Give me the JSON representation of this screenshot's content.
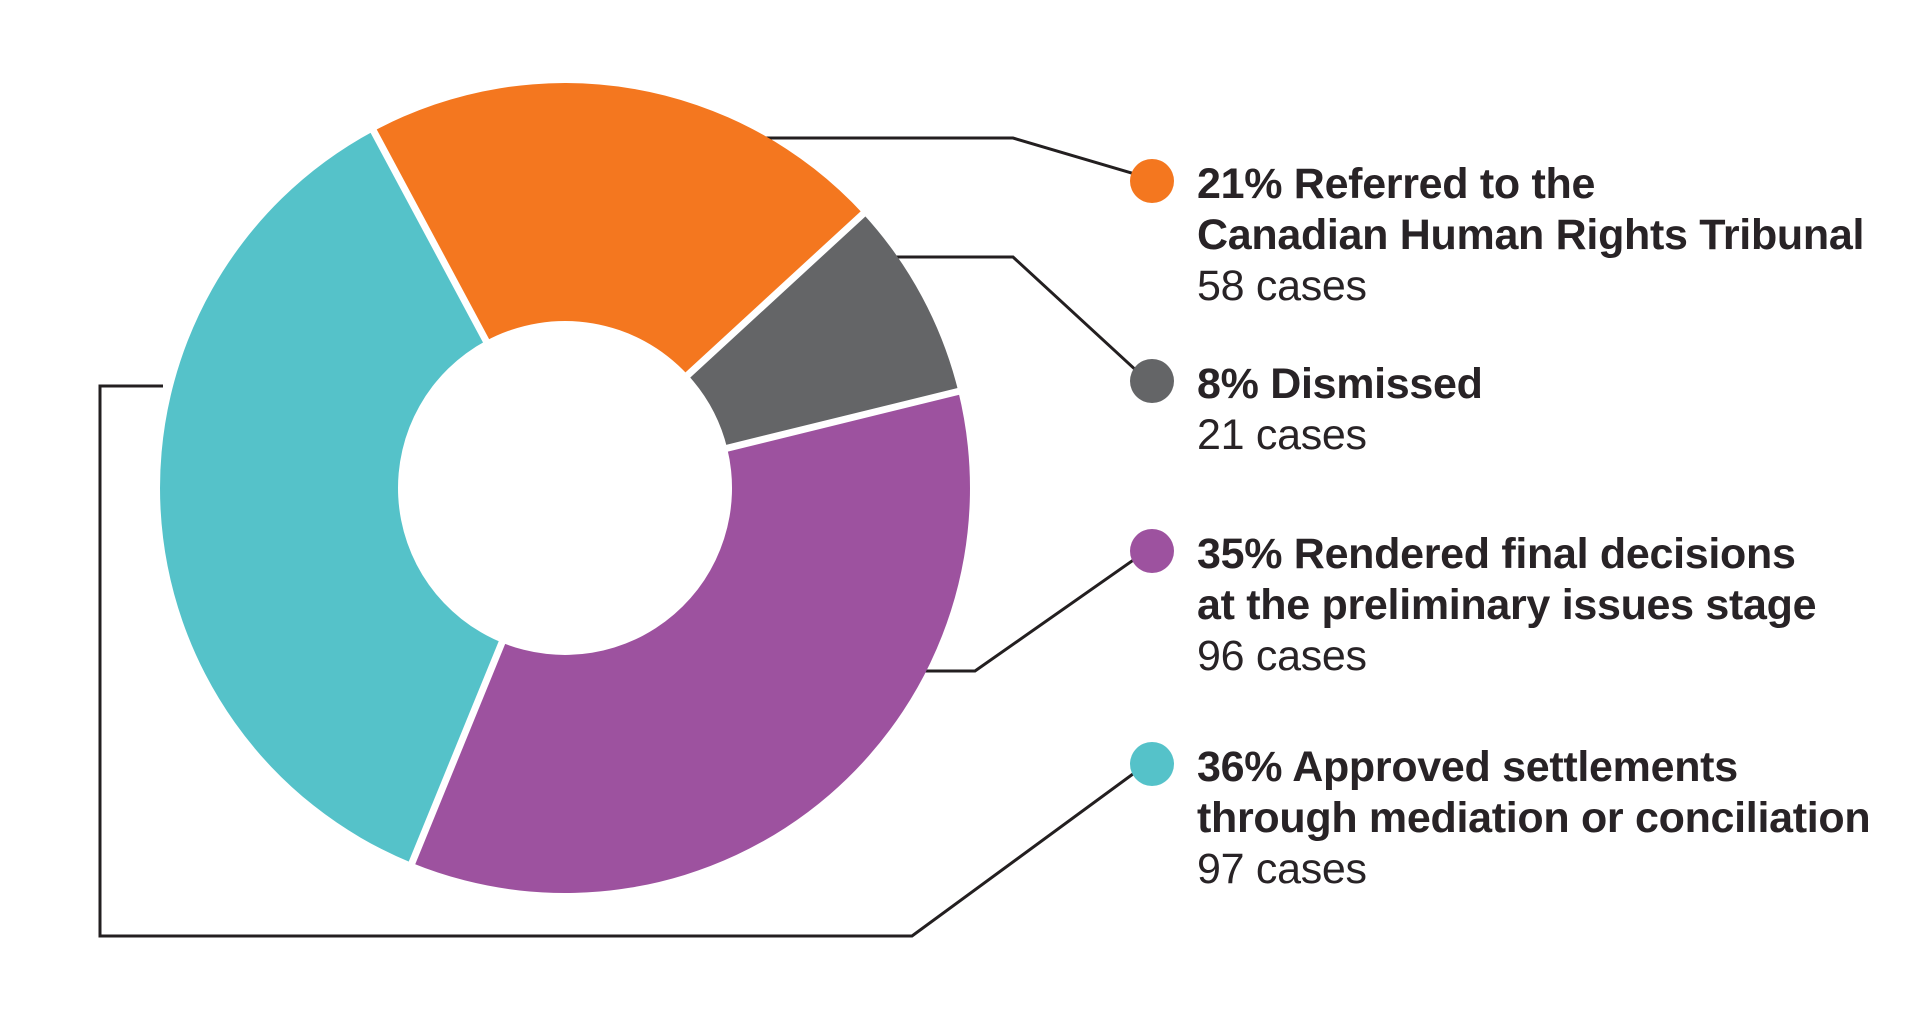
{
  "chart_data": {
    "type": "pie",
    "subtype": "donut",
    "title": "",
    "legend_position": "right",
    "start_angle_deg": -28.2,
    "direction": "clockwise",
    "inner_radius_ratio": 0.41,
    "separator_color": "#ffffff",
    "segments": [
      {
        "id": "referred",
        "label": "Referred to the Canadian Human Rights Tribunal",
        "pct": 21,
        "cases": 58,
        "color": "#f4771f"
      },
      {
        "id": "dismissed",
        "label": "Dismissed",
        "pct": 8,
        "cases": 21,
        "color": "#646567"
      },
      {
        "id": "final-decisions",
        "label": "Rendered final decisions at the preliminary issues stage",
        "pct": 35,
        "cases": 96,
        "color": "#9d529f"
      },
      {
        "id": "settlements",
        "label": "Approved settlements through mediation or conciliation",
        "pct": 36,
        "cases": 97,
        "color": "#55c2c9"
      }
    ]
  },
  "legend": {
    "items": [
      {
        "line1": "21% Referred to the",
        "line2": "Canadian Human Rights Tribunal",
        "cases": "58 cases",
        "color": "#f4771f"
      },
      {
        "line1": "8% Dismissed",
        "line2": "",
        "cases": "21 cases",
        "color": "#646567"
      },
      {
        "line1": "35% Rendered final decisions",
        "line2": "at the preliminary issues stage",
        "cases": "96 cases",
        "color": "#9d529f"
      },
      {
        "line1": "36% Approved settlements",
        "line2": "through mediation or conciliation",
        "cases": "97 cases",
        "color": "#55c2c9"
      }
    ]
  },
  "colors": {
    "background": "#ffffff",
    "text": "#282326",
    "connector_line": "#231f20"
  }
}
